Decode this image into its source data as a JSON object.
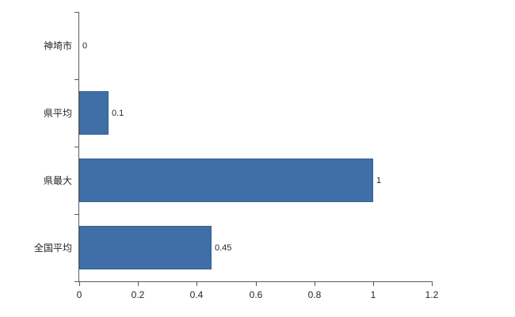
{
  "chart_data": {
    "type": "bar",
    "orientation": "horizontal",
    "title": "",
    "categories": [
      "神埼市",
      "県平均",
      "県最大",
      "全国平均"
    ],
    "values": [
      0,
      0.1,
      1,
      0.45
    ],
    "value_labels": [
      "0",
      "0.1",
      "1",
      "0.45"
    ],
    "xlim": [
      0,
      1.2
    ],
    "xticks": [
      0,
      0.2,
      0.4,
      0.6,
      0.8,
      1,
      1.2
    ],
    "xtick_labels": [
      "0",
      "0.2",
      "0.4",
      "0.6",
      "0.8",
      "1",
      "1.2"
    ],
    "grid": false,
    "legend": null,
    "colors": {
      "bar_fill": "#3f6fa6",
      "bar_border": "#38618f",
      "axis": "#595959",
      "text": "#262626",
      "background": "#ffffff"
    }
  }
}
